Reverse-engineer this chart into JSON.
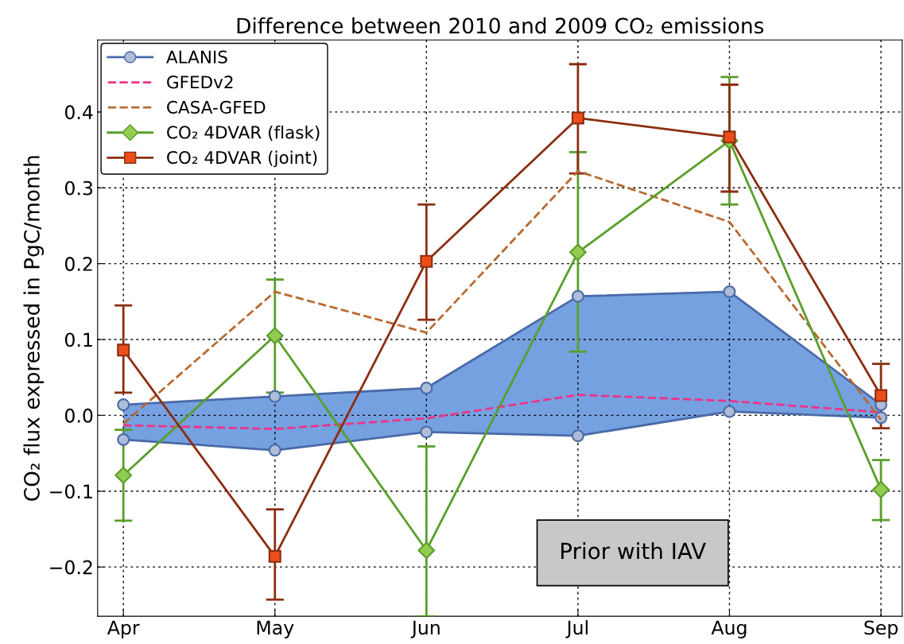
{
  "chart_data": {
    "type": "line",
    "title": "Difference between 2010 and 2009 CO₂ emissions",
    "ylabel": "CO₂ flux expressed in PgC/month",
    "categories": [
      "Apr",
      "May",
      "Jun",
      "Jul",
      "Aug",
      "Sep"
    ],
    "ylim": [
      -0.265,
      0.495
    ],
    "yticks": [
      {
        "value": -0.2,
        "label": "−0.2"
      },
      {
        "value": -0.1,
        "label": "−0.1"
      },
      {
        "value": 0.0,
        "label": "0.0"
      },
      0.1,
      0.2,
      0.3,
      0.4
    ],
    "grid": true,
    "legend": "top left",
    "series": [
      {
        "name": "ALANIS",
        "color": "#4a6aa8",
        "marker": "circle",
        "line_style": "solid",
        "values": [
          0.014,
          0.025,
          0.036,
          0.157,
          0.163,
          0.014
        ],
        "lower": [
          -0.032,
          -0.046,
          -0.022,
          -0.027,
          0.005,
          -0.003
        ],
        "upper": [
          0.014,
          0.025,
          0.036,
          0.157,
          0.163,
          0.014
        ]
      },
      {
        "color": "#4a6aa8",
        "marker": "circle",
        "line_style": "solid",
        "values": [
          -0.032,
          -0.046,
          -0.022,
          -0.027,
          0.005,
          -0.003
        ]
      },
      {
        "name": "GFEDv2",
        "color": "#ee3388",
        "marker": "none",
        "line_style": "dashed",
        "values": [
          -0.013,
          -0.018,
          -0.004,
          0.027,
          0.019,
          0.004
        ]
      },
      {
        "name": "CASA-GFED",
        "color": "#b86a30",
        "marker": "none",
        "line_style": "dashed",
        "values": [
          -0.011,
          0.163,
          0.109,
          0.322,
          0.255,
          -0.006
        ]
      },
      {
        "name": "CO₂ 4DVAR (flask)",
        "color": "#5a9e2a",
        "marker": "diamond",
        "line_style": "solid",
        "values": [
          -0.079,
          0.105,
          -0.178,
          0.215,
          0.362,
          -0.098
        ],
        "errors": [
          [
            -0.139,
            -0.019
          ],
          [
            0.03,
            0.179
          ],
          [
            -0.265,
            -0.041
          ],
          [
            0.084,
            0.347
          ],
          [
            0.278,
            0.446
          ],
          [
            -0.138,
            -0.059
          ]
        ]
      },
      {
        "name": "CO₂ 4DVAR (joint)",
        "color": "#8b2e10",
        "marker": "square",
        "line_style": "solid",
        "values": [
          0.086,
          -0.186,
          0.203,
          0.392,
          0.367,
          0.026
        ],
        "errors": [
          [
            0.03,
            0.145
          ],
          [
            -0.243,
            -0.124
          ],
          [
            0.126,
            0.278
          ],
          [
            0.319,
            0.463
          ],
          [
            0.295,
            0.436
          ],
          [
            -0.017,
            0.068
          ]
        ]
      }
    ],
    "annotations": [
      "Prior with IAV"
    ]
  }
}
